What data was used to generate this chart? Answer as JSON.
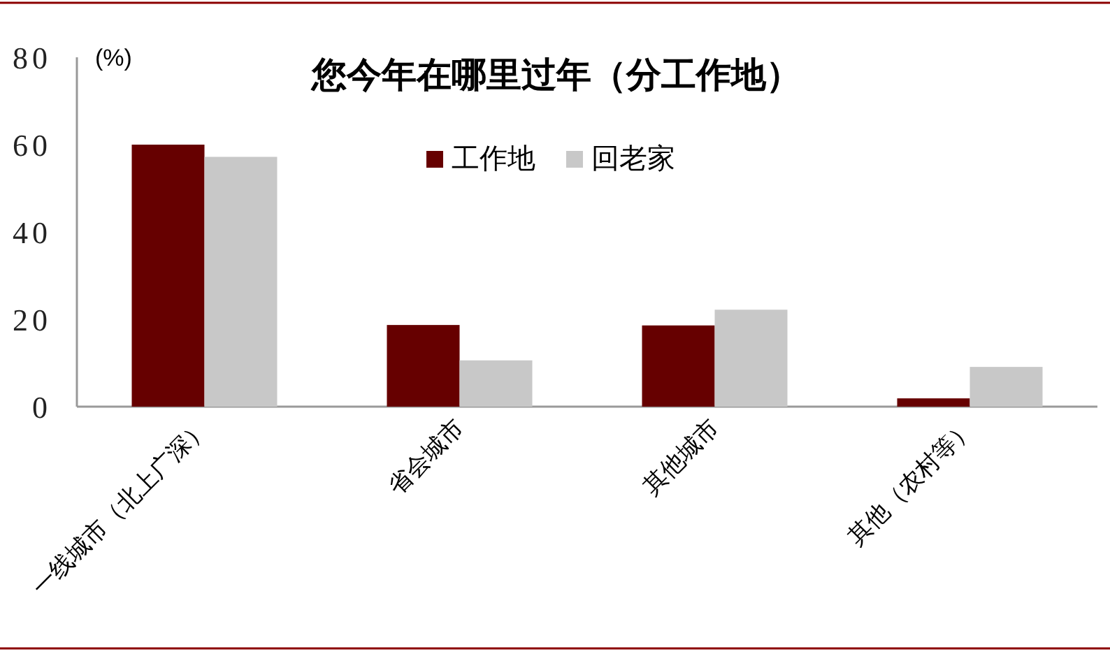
{
  "chart_data": {
    "type": "bar",
    "title": "您今年在哪里过年（分工作地）",
    "ylabel": "(%)",
    "categories": [
      "一线城市（北上广深）",
      "省会城市",
      "其他城市",
      "其他（农村等）"
    ],
    "series": [
      {
        "name": "工作地",
        "color": "#660000",
        "values": [
          60,
          18.7,
          18.6,
          1.9
        ]
      },
      {
        "name": "回老家",
        "color": "#c8c8c8",
        "values": [
          57.2,
          10.6,
          22.2,
          9.1
        ]
      }
    ],
    "ylim": [
      0,
      80
    ],
    "yticks": [
      0,
      20,
      40,
      60,
      80
    ],
    "legend": "top"
  }
}
